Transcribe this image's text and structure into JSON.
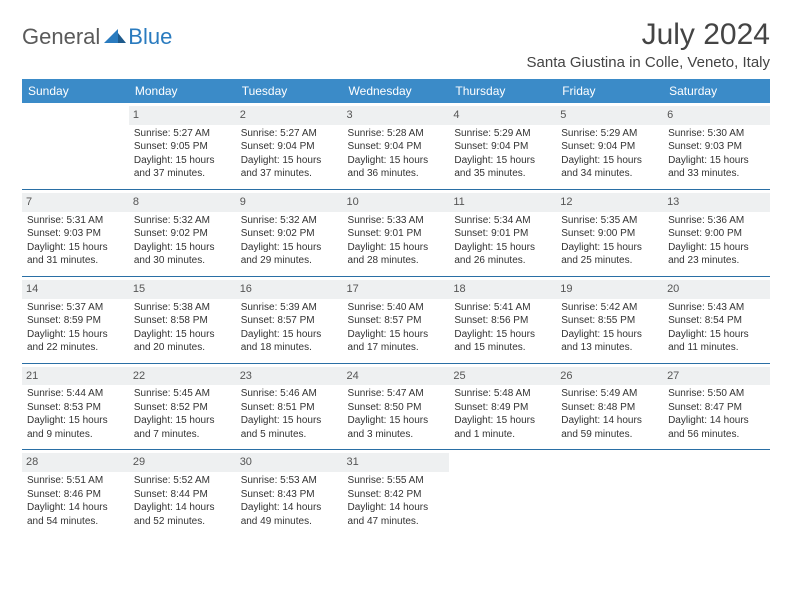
{
  "logo": {
    "general": "General",
    "blue": "Blue"
  },
  "title": "July 2024",
  "location": "Santa Giustina in Colle, Veneto, Italy",
  "colors": {
    "header_bg": "#3b8bc8",
    "header_text": "#ffffff",
    "daynum_bg": "#eef0f1",
    "row_border": "#2a6fa5",
    "logo_blue": "#2a7bbf",
    "logo_gray": "#5a5a5a"
  },
  "day_headers": [
    "Sunday",
    "Monday",
    "Tuesday",
    "Wednesday",
    "Thursday",
    "Friday",
    "Saturday"
  ],
  "weeks": [
    [
      null,
      {
        "n": "1",
        "sr": "5:27 AM",
        "ss": "9:05 PM",
        "dl": "15 hours and 37 minutes."
      },
      {
        "n": "2",
        "sr": "5:27 AM",
        "ss": "9:04 PM",
        "dl": "15 hours and 37 minutes."
      },
      {
        "n": "3",
        "sr": "5:28 AM",
        "ss": "9:04 PM",
        "dl": "15 hours and 36 minutes."
      },
      {
        "n": "4",
        "sr": "5:29 AM",
        "ss": "9:04 PM",
        "dl": "15 hours and 35 minutes."
      },
      {
        "n": "5",
        "sr": "5:29 AM",
        "ss": "9:04 PM",
        "dl": "15 hours and 34 minutes."
      },
      {
        "n": "6",
        "sr": "5:30 AM",
        "ss": "9:03 PM",
        "dl": "15 hours and 33 minutes."
      }
    ],
    [
      {
        "n": "7",
        "sr": "5:31 AM",
        "ss": "9:03 PM",
        "dl": "15 hours and 31 minutes."
      },
      {
        "n": "8",
        "sr": "5:32 AM",
        "ss": "9:02 PM",
        "dl": "15 hours and 30 minutes."
      },
      {
        "n": "9",
        "sr": "5:32 AM",
        "ss": "9:02 PM",
        "dl": "15 hours and 29 minutes."
      },
      {
        "n": "10",
        "sr": "5:33 AM",
        "ss": "9:01 PM",
        "dl": "15 hours and 28 minutes."
      },
      {
        "n": "11",
        "sr": "5:34 AM",
        "ss": "9:01 PM",
        "dl": "15 hours and 26 minutes."
      },
      {
        "n": "12",
        "sr": "5:35 AM",
        "ss": "9:00 PM",
        "dl": "15 hours and 25 minutes."
      },
      {
        "n": "13",
        "sr": "5:36 AM",
        "ss": "9:00 PM",
        "dl": "15 hours and 23 minutes."
      }
    ],
    [
      {
        "n": "14",
        "sr": "5:37 AM",
        "ss": "8:59 PM",
        "dl": "15 hours and 22 minutes."
      },
      {
        "n": "15",
        "sr": "5:38 AM",
        "ss": "8:58 PM",
        "dl": "15 hours and 20 minutes."
      },
      {
        "n": "16",
        "sr": "5:39 AM",
        "ss": "8:57 PM",
        "dl": "15 hours and 18 minutes."
      },
      {
        "n": "17",
        "sr": "5:40 AM",
        "ss": "8:57 PM",
        "dl": "15 hours and 17 minutes."
      },
      {
        "n": "18",
        "sr": "5:41 AM",
        "ss": "8:56 PM",
        "dl": "15 hours and 15 minutes."
      },
      {
        "n": "19",
        "sr": "5:42 AM",
        "ss": "8:55 PM",
        "dl": "15 hours and 13 minutes."
      },
      {
        "n": "20",
        "sr": "5:43 AM",
        "ss": "8:54 PM",
        "dl": "15 hours and 11 minutes."
      }
    ],
    [
      {
        "n": "21",
        "sr": "5:44 AM",
        "ss": "8:53 PM",
        "dl": "15 hours and 9 minutes."
      },
      {
        "n": "22",
        "sr": "5:45 AM",
        "ss": "8:52 PM",
        "dl": "15 hours and 7 minutes."
      },
      {
        "n": "23",
        "sr": "5:46 AM",
        "ss": "8:51 PM",
        "dl": "15 hours and 5 minutes."
      },
      {
        "n": "24",
        "sr": "5:47 AM",
        "ss": "8:50 PM",
        "dl": "15 hours and 3 minutes."
      },
      {
        "n": "25",
        "sr": "5:48 AM",
        "ss": "8:49 PM",
        "dl": "15 hours and 1 minute."
      },
      {
        "n": "26",
        "sr": "5:49 AM",
        "ss": "8:48 PM",
        "dl": "14 hours and 59 minutes."
      },
      {
        "n": "27",
        "sr": "5:50 AM",
        "ss": "8:47 PM",
        "dl": "14 hours and 56 minutes."
      }
    ],
    [
      {
        "n": "28",
        "sr": "5:51 AM",
        "ss": "8:46 PM",
        "dl": "14 hours and 54 minutes."
      },
      {
        "n": "29",
        "sr": "5:52 AM",
        "ss": "8:44 PM",
        "dl": "14 hours and 52 minutes."
      },
      {
        "n": "30",
        "sr": "5:53 AM",
        "ss": "8:43 PM",
        "dl": "14 hours and 49 minutes."
      },
      {
        "n": "31",
        "sr": "5:55 AM",
        "ss": "8:42 PM",
        "dl": "14 hours and 47 minutes."
      },
      null,
      null,
      null
    ]
  ],
  "labels": {
    "sunrise_prefix": "Sunrise: ",
    "sunset_prefix": "Sunset: ",
    "daylight_prefix": "Daylight: "
  }
}
